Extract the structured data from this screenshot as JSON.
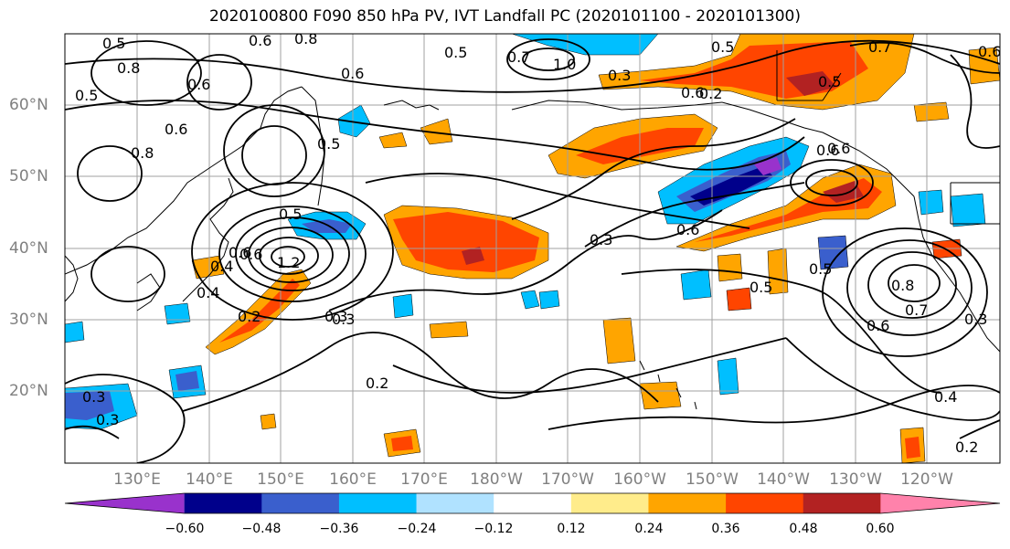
{
  "title": "2020100800 F090 850 hPa PV, IVT Landfall PC (2020101100 - 2020101300)",
  "map": {
    "lat_labels": [
      "60°N",
      "50°N",
      "40°N",
      "30°N",
      "20°N"
    ],
    "lon_labels": [
      "130°E",
      "140°E",
      "150°E",
      "160°E",
      "170°E",
      "180°W",
      "170°W",
      "160°W",
      "150°W",
      "140°W",
      "130°W",
      "120°W"
    ],
    "contour_labels": [
      "0.5",
      "0.6",
      "0.8",
      "0.5",
      "0.7",
      "0.5",
      "1.0",
      "0.3",
      "0.6",
      "0.5",
      "0.7",
      "0.6",
      "0.8",
      "0.8",
      "0.5",
      "0.6",
      "0.6",
      "0.5",
      "0.6",
      "0.4",
      "0.2",
      "1.2",
      "0.6",
      "0.4",
      "0.3",
      "0.2",
      "0.3",
      "0.5",
      "0.6",
      "0.3",
      "0.5",
      "0.6",
      "0.8",
      "0.6",
      "0.7",
      "0.3",
      "0.4",
      "0.2",
      "0.6",
      "0.5",
      "0.3",
      "0.3",
      "0.6",
      "0.2"
    ]
  },
  "colorbar": {
    "ticks": [
      "−0.60",
      "−0.48",
      "−0.36",
      "−0.24",
      "−0.12",
      "0.12",
      "0.24",
      "0.36",
      "0.48",
      "0.60"
    ],
    "colors": [
      "#9932cc",
      "#00008b",
      "#3a5fcd",
      "#00bfff",
      "#b0e2ff",
      "#ffffff",
      "#ffec8b",
      "#ffa500",
      "#ff4500",
      "#b22222",
      "#ff82ab"
    ]
  }
}
